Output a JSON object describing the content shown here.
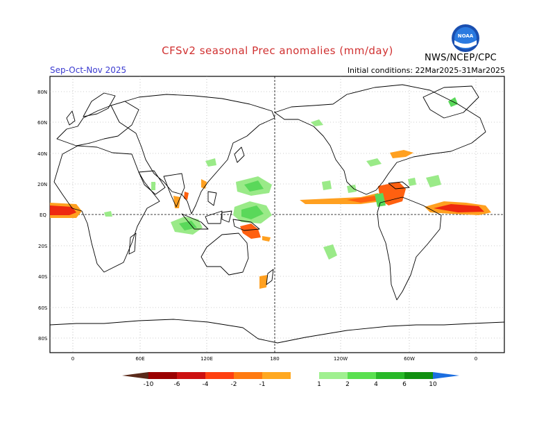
{
  "header": {
    "title": "CFSv2 seasonal Prec anomalies (mm/day)",
    "season": "Sep-Oct-Nov 2025",
    "initial_conditions": "Initial conditions: 22Mar2025-31Mar2025",
    "org": "NWS/NCEP/CPC",
    "logo_text": "NOAA"
  },
  "map": {
    "lat_labels": [
      "80N",
      "60N",
      "40N",
      "20N",
      "EQ",
      "20S",
      "40S",
      "60S",
      "80S"
    ],
    "lon_labels": [
      "0",
      "60E",
      "120E",
      "180",
      "120W",
      "60W",
      "0"
    ]
  },
  "colorbar": {
    "labels": [
      "-10",
      "-6",
      "-4",
      "-2",
      "-1",
      "1",
      "2",
      "4",
      "6",
      "10"
    ],
    "colors": [
      "#5a2a1a",
      "#9a0000",
      "#cc1010",
      "#ff4010",
      "#ff7a10",
      "#ffa820",
      "#ffffff",
      "#a0f090",
      "#5ae050",
      "#28b828",
      "#109010",
      "#1c6ee0"
    ]
  },
  "anomaly_colors": {
    "dry_light": "#ffa020",
    "dry_mid": "#ff6010",
    "dry_strong": "#ee2810",
    "wet_light": "#9aea88",
    "wet_mid": "#5ad85a"
  }
}
